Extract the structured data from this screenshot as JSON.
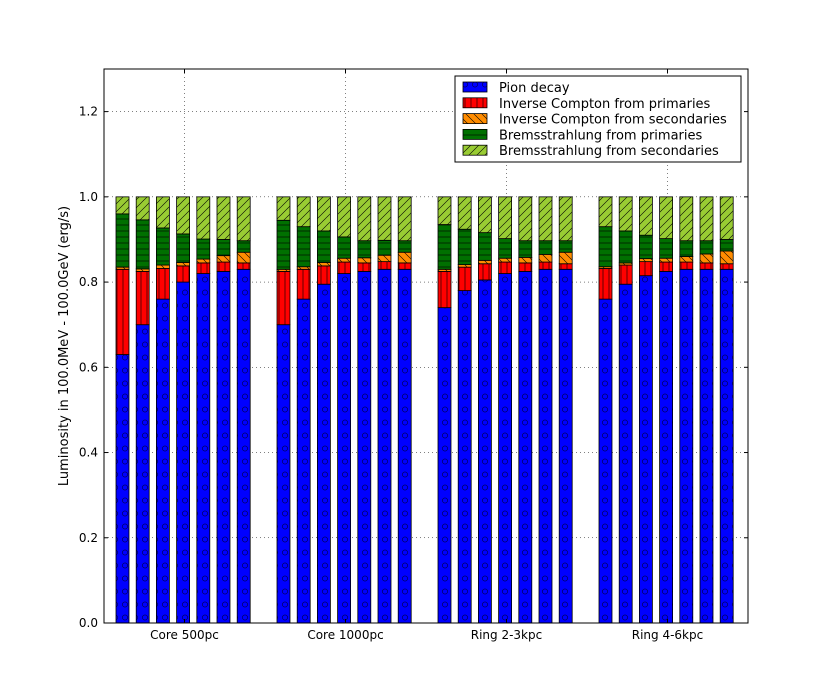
{
  "chart_data": {
    "type": "bar",
    "stacked": true,
    "title": "",
    "xlabel": "",
    "ylabel": "Luminosity in 100.0MeV - 100.0GeV (erg/s)",
    "ylim": [
      0.0,
      1.3
    ],
    "yticks": [
      "0.0",
      "0.2",
      "0.4",
      "0.6",
      "0.8",
      "1.0",
      "1.2"
    ],
    "grid": true,
    "legend_position": "top-right",
    "groups": [
      "Core 500pc",
      "Core 1000pc",
      "Ring 2-3kpc",
      "Ring 4-6kpc"
    ],
    "bars_per_group": 7,
    "series": [
      {
        "name": "Pion decay",
        "color": "#0000ff",
        "hatch": "circles",
        "values": [
          [
            0.63,
            0.7,
            0.76,
            0.8,
            0.82,
            0.825,
            0.83
          ],
          [
            0.7,
            0.76,
            0.795,
            0.82,
            0.825,
            0.83,
            0.83
          ],
          [
            0.74,
            0.78,
            0.805,
            0.82,
            0.825,
            0.83,
            0.83
          ],
          [
            0.76,
            0.795,
            0.815,
            0.825,
            0.83,
            0.83,
            0.83
          ]
        ]
      },
      {
        "name": "Inverse Compton from primaries",
        "color": "#ff0000",
        "hatch": "vertical",
        "values": [
          [
            0.2,
            0.125,
            0.072,
            0.038,
            0.025,
            0.022,
            0.015
          ],
          [
            0.125,
            0.07,
            0.043,
            0.027,
            0.02,
            0.018,
            0.015
          ],
          [
            0.085,
            0.055,
            0.038,
            0.027,
            0.02,
            0.017,
            0.013
          ],
          [
            0.072,
            0.045,
            0.033,
            0.022,
            0.017,
            0.015,
            0.013
          ]
        ]
      },
      {
        "name": "Inverse Compton from secondaries",
        "color": "#ff8c00",
        "hatch": "diagonal-back",
        "values": [
          [
            0.005,
            0.006,
            0.008,
            0.008,
            0.009,
            0.015,
            0.025
          ],
          [
            0.005,
            0.006,
            0.008,
            0.009,
            0.012,
            0.015,
            0.025
          ],
          [
            0.005,
            0.006,
            0.008,
            0.009,
            0.013,
            0.018,
            0.027
          ],
          [
            0.004,
            0.005,
            0.007,
            0.009,
            0.013,
            0.021,
            0.03
          ]
        ]
      },
      {
        "name": "Bremsstrahlung from primaries",
        "color": "#007000",
        "hatch": "horizontal",
        "values": [
          [
            0.125,
            0.115,
            0.087,
            0.067,
            0.047,
            0.038,
            0.027
          ],
          [
            0.115,
            0.094,
            0.074,
            0.05,
            0.04,
            0.035,
            0.027
          ],
          [
            0.105,
            0.083,
            0.065,
            0.046,
            0.039,
            0.032,
            0.027
          ],
          [
            0.094,
            0.075,
            0.055,
            0.046,
            0.037,
            0.031,
            0.027
          ]
        ]
      },
      {
        "name": "Bremsstrahlung from secondaries",
        "color": "#99cc33",
        "hatch": "diagonal",
        "values": [
          [
            0.04,
            0.054,
            0.073,
            0.087,
            0.099,
            0.1,
            0.103
          ],
          [
            0.055,
            0.07,
            0.08,
            0.094,
            0.103,
            0.102,
            0.103
          ],
          [
            0.065,
            0.076,
            0.084,
            0.098,
            0.103,
            0.103,
            0.103
          ],
          [
            0.07,
            0.08,
            0.09,
            0.098,
            0.103,
            0.103,
            0.1
          ]
        ]
      }
    ]
  }
}
